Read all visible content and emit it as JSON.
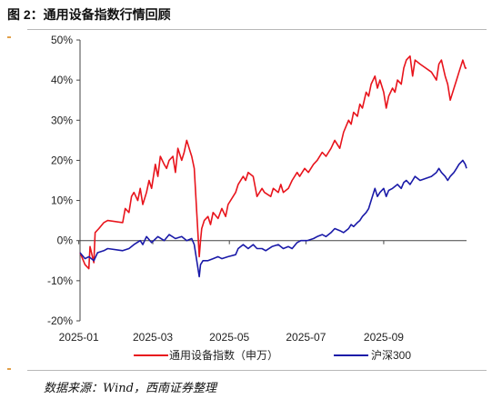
{
  "figure": {
    "title": "图 2：通用设备指数行情回顾",
    "source": "数据来源：Wind，西南证券整理"
  },
  "chart_data": {
    "type": "line",
    "title": "",
    "xlabel": "",
    "ylabel": "",
    "x_ticks": [
      "2025-01",
      "2025-03",
      "2025-05",
      "2025-07",
      "2025-09"
    ],
    "y_ticks": [
      "50%",
      "40%",
      "30%",
      "20%",
      "10%",
      "0%",
      "-10%",
      "-20%"
    ],
    "ylim": [
      -20,
      50
    ],
    "grid": false,
    "legend": "bottom",
    "series": [
      {
        "name": "通用设备指数（申万）",
        "color": "#e8141c",
        "points": [
          [
            "2025-01-02",
            -3
          ],
          [
            "2025-01-06",
            -6
          ],
          [
            "2025-01-09",
            -7
          ],
          [
            "2025-01-10",
            -1.5
          ],
          [
            "2025-01-13",
            -5.5
          ],
          [
            "2025-01-14",
            2
          ],
          [
            "2025-01-17",
            3
          ],
          [
            "2025-01-21",
            4.5
          ],
          [
            "2025-01-24",
            5
          ],
          [
            "2025-02-05",
            4.5
          ],
          [
            "2025-02-07",
            8
          ],
          [
            "2025-02-10",
            7
          ],
          [
            "2025-02-12",
            11
          ],
          [
            "2025-02-14",
            12
          ],
          [
            "2025-02-17",
            10
          ],
          [
            "2025-02-19",
            13
          ],
          [
            "2025-02-21",
            9
          ],
          [
            "2025-02-24",
            12
          ],
          [
            "2025-02-26",
            15
          ],
          [
            "2025-02-28",
            13
          ],
          [
            "2025-03-03",
            19
          ],
          [
            "2025-03-05",
            16
          ],
          [
            "2025-03-07",
            21
          ],
          [
            "2025-03-10",
            19
          ],
          [
            "2025-03-12",
            18
          ],
          [
            "2025-03-14",
            20
          ],
          [
            "2025-03-17",
            21
          ],
          [
            "2025-03-19",
            17
          ],
          [
            "2025-03-21",
            23
          ],
          [
            "2025-03-24",
            20
          ],
          [
            "2025-03-26",
            22
          ],
          [
            "2025-03-28",
            25
          ],
          [
            "2025-03-31",
            22
          ],
          [
            "2025-04-01",
            21
          ],
          [
            "2025-04-03",
            18
          ],
          [
            "2025-04-07",
            -4
          ],
          [
            "2025-04-08",
            0
          ],
          [
            "2025-04-09",
            3
          ],
          [
            "2025-04-11",
            5
          ],
          [
            "2025-04-14",
            6
          ],
          [
            "2025-04-16",
            4
          ],
          [
            "2025-04-18",
            7
          ],
          [
            "2025-04-22",
            5.5
          ],
          [
            "2025-04-25",
            8
          ],
          [
            "2025-04-28",
            6
          ],
          [
            "2025-04-30",
            9
          ],
          [
            "2025-05-06",
            12
          ],
          [
            "2025-05-08",
            14
          ],
          [
            "2025-05-12",
            16
          ],
          [
            "2025-05-14",
            15
          ],
          [
            "2025-05-16",
            17
          ],
          [
            "2025-05-20",
            16
          ],
          [
            "2025-05-23",
            11
          ],
          [
            "2025-05-27",
            13
          ],
          [
            "2025-05-29",
            12
          ],
          [
            "2025-06-03",
            11
          ],
          [
            "2025-06-05",
            13
          ],
          [
            "2025-06-09",
            12
          ],
          [
            "2025-06-11",
            14
          ],
          [
            "2025-06-13",
            12
          ],
          [
            "2025-06-17",
            13
          ],
          [
            "2025-06-20",
            15
          ],
          [
            "2025-06-24",
            17
          ],
          [
            "2025-06-26",
            16
          ],
          [
            "2025-06-30",
            18
          ],
          [
            "2025-07-03",
            17
          ],
          [
            "2025-07-07",
            19
          ],
          [
            "2025-07-10",
            20
          ],
          [
            "2025-07-14",
            22
          ],
          [
            "2025-07-17",
            21
          ],
          [
            "2025-07-21",
            23
          ],
          [
            "2025-07-24",
            25
          ],
          [
            "2025-07-28",
            23
          ],
          [
            "2025-07-31",
            27
          ],
          [
            "2025-08-04",
            30
          ],
          [
            "2025-08-06",
            29
          ],
          [
            "2025-08-08",
            32
          ],
          [
            "2025-08-11",
            31
          ],
          [
            "2025-08-13",
            34
          ],
          [
            "2025-08-15",
            33
          ],
          [
            "2025-08-18",
            37
          ],
          [
            "2025-08-20",
            36
          ],
          [
            "2025-08-22",
            39
          ],
          [
            "2025-08-25",
            41
          ],
          [
            "2025-08-27",
            38
          ],
          [
            "2025-08-29",
            40
          ],
          [
            "2025-09-01",
            37
          ],
          [
            "2025-09-03",
            33
          ],
          [
            "2025-09-05",
            36
          ],
          [
            "2025-09-08",
            38
          ],
          [
            "2025-09-10",
            37
          ],
          [
            "2025-09-12",
            40
          ],
          [
            "2025-09-15",
            39
          ],
          [
            "2025-09-17",
            43
          ],
          [
            "2025-09-19",
            45
          ],
          [
            "2025-09-22",
            46
          ],
          [
            "2025-09-24",
            41
          ],
          [
            "2025-09-26",
            45
          ],
          [
            "2025-09-30",
            44
          ],
          [
            "2025-10-09",
            42
          ],
          [
            "2025-10-13",
            40
          ],
          [
            "2025-10-15",
            44
          ],
          [
            "2025-10-17",
            45
          ],
          [
            "2025-10-20",
            41
          ],
          [
            "2025-10-22",
            39
          ],
          [
            "2025-10-24",
            35
          ],
          [
            "2025-10-27",
            38
          ],
          [
            "2025-10-29",
            40
          ],
          [
            "2025-10-31",
            42
          ],
          [
            "2025-11-03",
            45
          ],
          [
            "2025-11-05",
            43
          ],
          [
            "2025-11-06",
            43
          ]
        ]
      },
      {
        "name": "沪深300",
        "color": "#1a1aa8",
        "points": [
          [
            "2025-01-02",
            -3
          ],
          [
            "2025-01-06",
            -4.5
          ],
          [
            "2025-01-09",
            -4
          ],
          [
            "2025-01-13",
            -5
          ],
          [
            "2025-01-16",
            -3
          ],
          [
            "2025-01-21",
            -2.5
          ],
          [
            "2025-01-24",
            -2
          ],
          [
            "2025-02-05",
            -2.5
          ],
          [
            "2025-02-10",
            -2
          ],
          [
            "2025-02-14",
            -1
          ],
          [
            "2025-02-19",
            0
          ],
          [
            "2025-02-21",
            -1
          ],
          [
            "2025-02-24",
            1
          ],
          [
            "2025-02-28",
            -0.5
          ],
          [
            "2025-03-05",
            1
          ],
          [
            "2025-03-10",
            0
          ],
          [
            "2025-03-14",
            1.5
          ],
          [
            "2025-03-19",
            0.5
          ],
          [
            "2025-03-24",
            1
          ],
          [
            "2025-03-28",
            0
          ],
          [
            "2025-04-01",
            0.5
          ],
          [
            "2025-04-03",
            -1
          ],
          [
            "2025-04-07",
            -9
          ],
          [
            "2025-04-08",
            -6
          ],
          [
            "2025-04-10",
            -5
          ],
          [
            "2025-04-14",
            -5
          ],
          [
            "2025-04-18",
            -4.5
          ],
          [
            "2025-04-22",
            -4
          ],
          [
            "2025-04-25",
            -4.5
          ],
          [
            "2025-04-30",
            -4
          ],
          [
            "2025-05-06",
            -3.5
          ],
          [
            "2025-05-08",
            -2
          ],
          [
            "2025-05-12",
            -1
          ],
          [
            "2025-05-14",
            -1.5
          ],
          [
            "2025-05-16",
            -2
          ],
          [
            "2025-05-20",
            -1
          ],
          [
            "2025-05-23",
            -2
          ],
          [
            "2025-05-27",
            -2
          ],
          [
            "2025-05-30",
            -2.5
          ],
          [
            "2025-06-04",
            -1.5
          ],
          [
            "2025-06-09",
            -1
          ],
          [
            "2025-06-13",
            -2
          ],
          [
            "2025-06-17",
            -1.5
          ],
          [
            "2025-06-20",
            -2
          ],
          [
            "2025-06-24",
            -0.5
          ],
          [
            "2025-06-27",
            0
          ],
          [
            "2025-07-02",
            0
          ],
          [
            "2025-07-07",
            0.5
          ],
          [
            "2025-07-10",
            1
          ],
          [
            "2025-07-14",
            1.5
          ],
          [
            "2025-07-17",
            1
          ],
          [
            "2025-07-21",
            2
          ],
          [
            "2025-07-24",
            3
          ],
          [
            "2025-07-28",
            2.5
          ],
          [
            "2025-07-31",
            2
          ],
          [
            "2025-08-04",
            3
          ],
          [
            "2025-08-06",
            4
          ],
          [
            "2025-08-08",
            3.5
          ],
          [
            "2025-08-11",
            4.5
          ],
          [
            "2025-08-13",
            5
          ],
          [
            "2025-08-15",
            6
          ],
          [
            "2025-08-18",
            7
          ],
          [
            "2025-08-20",
            8
          ],
          [
            "2025-08-22",
            10
          ],
          [
            "2025-08-25",
            13
          ],
          [
            "2025-08-27",
            11
          ],
          [
            "2025-08-29",
            12
          ],
          [
            "2025-09-01",
            13
          ],
          [
            "2025-09-03",
            11
          ],
          [
            "2025-09-05",
            12.5
          ],
          [
            "2025-09-08",
            13
          ],
          [
            "2025-09-12",
            14
          ],
          [
            "2025-09-15",
            13
          ],
          [
            "2025-09-17",
            14.5
          ],
          [
            "2025-09-19",
            15
          ],
          [
            "2025-09-22",
            14
          ],
          [
            "2025-09-24",
            15
          ],
          [
            "2025-09-26",
            16
          ],
          [
            "2025-09-30",
            15
          ],
          [
            "2025-10-09",
            16
          ],
          [
            "2025-10-13",
            17
          ],
          [
            "2025-10-15",
            18
          ],
          [
            "2025-10-17",
            17
          ],
          [
            "2025-10-20",
            16
          ],
          [
            "2025-10-22",
            15
          ],
          [
            "2025-10-24",
            16
          ],
          [
            "2025-10-27",
            17
          ],
          [
            "2025-10-29",
            18
          ],
          [
            "2025-10-31",
            19
          ],
          [
            "2025-11-03",
            20
          ],
          [
            "2025-11-05",
            19
          ],
          [
            "2025-11-06",
            18
          ]
        ]
      }
    ]
  }
}
